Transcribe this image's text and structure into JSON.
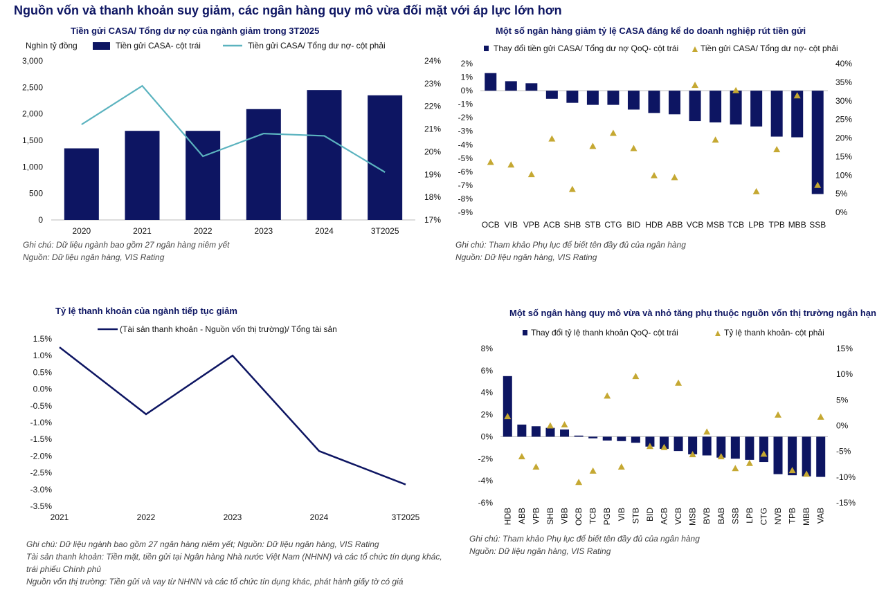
{
  "page_title": "Nguồn vốn và thanh khoản suy giảm, các ngân hàng quy mô vừa đối mặt với áp lực lớn hơn",
  "colors": {
    "navy": "#0d1562",
    "teal": "#5bb3bf",
    "gold": "#c5a832",
    "note": "#444444",
    "title": "#0d1562"
  },
  "chart_data": [
    {
      "type": "bar",
      "title": "Tiền gửi CASA/ Tổng dư nợ của ngành giảm trong 3T2025",
      "unit_label": "Nghìn tỷ đồng",
      "categories": [
        "2020",
        "2021",
        "2022",
        "2023",
        "2024",
        "3T2025"
      ],
      "series": [
        {
          "name": "Tiền gửi CASA- cột trái",
          "kind": "bar",
          "axis": "left",
          "values": [
            1350,
            1680,
            1680,
            2090,
            2450,
            2350
          ]
        },
        {
          "name": "Tiền gửi CASA/ Tổng dư nợ- cột phải",
          "kind": "line",
          "axis": "right",
          "values": [
            21.2,
            22.9,
            19.8,
            20.8,
            20.7,
            19.1
          ]
        }
      ],
      "ylim": [
        0,
        3000
      ],
      "yticks": [
        "0",
        "500",
        "1,000",
        "1,500",
        "2,000",
        "2,500",
        "3,000"
      ],
      "y2lim": [
        17,
        24
      ],
      "y2ticks": [
        "17%",
        "18%",
        "19%",
        "20%",
        "21%",
        "22%",
        "23%",
        "24%"
      ],
      "notes": [
        "Ghi chú: Dữ liệu ngành bao gồm 27 ngân hàng niêm yết",
        "Nguồn: Dữ liệu ngân hàng, VIS Rating"
      ]
    },
    {
      "type": "bar",
      "title": "Một số ngân hàng giảm tỷ lệ CASA đáng kể do doanh nghiệp rút tiền gửi",
      "categories": [
        "OCB",
        "VIB",
        "VPB",
        "ACB",
        "SHB",
        "STB",
        "CTG",
        "BID",
        "HDB",
        "ABB",
        "VCB",
        "MSB",
        "TCB",
        "LPB",
        "TPB",
        "MBB",
        "SSB"
      ],
      "series": [
        {
          "name": "Thay đổi tiền gửi CASA/ Tổng dư nợ QoQ- cột trái",
          "kind": "bar",
          "axis": "left",
          "values": [
            1.3,
            0.7,
            0.55,
            -0.6,
            -0.9,
            -1.05,
            -1.05,
            -1.4,
            -1.65,
            -1.75,
            -2.25,
            -2.35,
            -2.5,
            -2.65,
            -3.4,
            -3.45,
            -7.65
          ]
        },
        {
          "name": "Tiền gửi CASA/ Tổng dư nợ- cột phải",
          "kind": "scatter",
          "axis": "right",
          "values": [
            13.5,
            12.8,
            10.2,
            19.8,
            6.2,
            17.8,
            21.3,
            17.2,
            9.9,
            9.4,
            34.2,
            19.5,
            32.8,
            5.6,
            16.9,
            31.4,
            7.3
          ]
        }
      ],
      "ylim": [
        -9,
        2
      ],
      "yticks": [
        "2%",
        "1%",
        "0%",
        "-1%",
        "-2%",
        "-3%",
        "-4%",
        "-5%",
        "-6%",
        "-7%",
        "-8%",
        "-9%"
      ],
      "y2lim": [
        0,
        40
      ],
      "y2ticks": [
        "40%",
        "35%",
        "30%",
        "25%",
        "20%",
        "15%",
        "10%",
        "5%",
        "0%"
      ],
      "notes": [
        "Ghi chú: Tham khảo Phụ lục để biết tên đầy đủ của ngân hàng",
        "Nguồn: Dữ liệu ngân hàng, VIS Rating"
      ]
    },
    {
      "type": "line",
      "title": "Tỷ lệ thanh khoản của ngành tiếp tục giảm",
      "categories": [
        "2021",
        "2022",
        "2023",
        "2024",
        "3T2025"
      ],
      "series": [
        {
          "name": "(Tài sản thanh khoản - Nguồn vốn thị trường)/ Tổng tài sản",
          "kind": "line",
          "values": [
            1.25,
            -0.75,
            1.0,
            -1.85,
            -2.85
          ]
        }
      ],
      "ylim": [
        -3.5,
        1.5
      ],
      "yticks": [
        "1.5%",
        "1.0%",
        "0.5%",
        "0.0%",
        "-0.5%",
        "-1.0%",
        "-1.5%",
        "-2.0%",
        "-2.5%",
        "-3.0%",
        "-3.5%"
      ],
      "notes": [
        "Ghi chú: Dữ liệu ngành bao gồm 27 ngân hàng niêm yết; Nguồn: Dữ liệu ngân hàng, VIS Rating",
        "Tài sản thanh khoản: Tiền mặt, tiền gửi tại Ngân hàng Nhà nước Việt Nam (NHNN) và các tổ chức tín dụng khác,",
        "trái phiếu Chính phủ",
        "Nguồn vốn thị trường: Tiền gửi và vay từ NHNN và các tổ chức tín dụng khác, phát hành giấy tờ có giá"
      ]
    },
    {
      "type": "bar",
      "title": "Một số ngân hàng quy mô vừa và nhỏ tăng phụ thuộc nguồn vốn thị trường ngắn hạn",
      "categories": [
        "HDB",
        "ABB",
        "VPB",
        "SHB",
        "VBB",
        "OCB",
        "TCB",
        "PGB",
        "VIB",
        "STB",
        "BID",
        "ACB",
        "VCB",
        "MSB",
        "BVB",
        "BAB",
        "SSB",
        "LPB",
        "CTG",
        "NVB",
        "TPB",
        "MBB",
        "VAB"
      ],
      "series": [
        {
          "name": "Thay đổi tỷ lệ thanh khoản QoQ- cột trái",
          "kind": "bar",
          "axis": "left",
          "values": [
            5.5,
            1.1,
            0.95,
            0.8,
            0.65,
            0.1,
            -0.15,
            -0.35,
            -0.4,
            -0.55,
            -0.9,
            -1.1,
            -1.3,
            -1.6,
            -1.7,
            -1.9,
            -2.0,
            -2.1,
            -2.3,
            -3.4,
            -3.5,
            -3.6,
            -3.65
          ]
        },
        {
          "name": "Tỷ lệ thanh khoản- cột phải",
          "kind": "scatter",
          "axis": "right",
          "values": [
            1.8,
            -6.0,
            -8.0,
            0.0,
            0.2,
            -11.0,
            -8.8,
            5.8,
            -8.0,
            9.6,
            -4.0,
            -4.2,
            8.3,
            -5.6,
            -1.2,
            -6.0,
            -8.3,
            -7.3,
            -5.5,
            2.1,
            -8.7,
            -9.4,
            1.7
          ]
        }
      ],
      "ylim": [
        -6,
        8
      ],
      "yticks": [
        "8%",
        "6%",
        "4%",
        "2%",
        "0%",
        "-2%",
        "-4%",
        "-6%"
      ],
      "y2lim": [
        -15,
        15
      ],
      "y2ticks": [
        "15%",
        "10%",
        "5%",
        "0%",
        "-5%",
        "-10%",
        "-15%"
      ],
      "notes": [
        "Ghi chú: Tham khảo Phụ lục để biết tên đầy đủ của ngân hàng",
        "Nguồn: Dữ liệu ngân hàng, VIS Rating"
      ]
    }
  ]
}
